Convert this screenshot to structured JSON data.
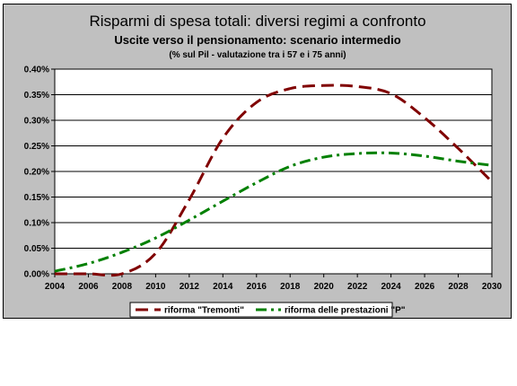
{
  "chart_data": {
    "type": "line",
    "title": "Risparmi di spesa totali: diversi regimi a confronto",
    "subtitle": "Uscite verso il pensionamento: scenario intermedio",
    "note": "(% sul Pil - valutazione tra i 57 e i 75 anni)",
    "xlabel": "",
    "ylabel": "",
    "x": [
      2004,
      2006,
      2008,
      2010,
      2012,
      2014,
      2016,
      2018,
      2020,
      2022,
      2024,
      2026,
      2028,
      2030
    ],
    "x_ticks": [
      "2004",
      "2006",
      "2008",
      "2010",
      "2012",
      "2014",
      "2016",
      "2018",
      "2020",
      "2022",
      "2024",
      "2026",
      "2028",
      "2030"
    ],
    "y_ticks": [
      "0.00%",
      "0.05%",
      "0.10%",
      "0.15%",
      "0.20%",
      "0.25%",
      "0.30%",
      "0.35%",
      "0.40%"
    ],
    "xlim": [
      2004,
      2030
    ],
    "ylim": [
      0,
      0.4
    ],
    "grid": "horizontal",
    "legend_position": "bottom",
    "series": [
      {
        "name": "riforma \"Tremonti\"",
        "color": "#800000",
        "dash": "long-dash",
        "values": [
          0.0,
          0.0,
          0.0,
          0.04,
          0.145,
          0.265,
          0.335,
          0.362,
          0.368,
          0.366,
          0.352,
          0.305,
          0.245,
          0.18
        ]
      },
      {
        "name": "riforma delle prestazioni \"P\"",
        "color": "#008000",
        "dash": "dash-dot",
        "values": [
          0.005,
          0.02,
          0.042,
          0.07,
          0.105,
          0.142,
          0.178,
          0.21,
          0.228,
          0.235,
          0.236,
          0.23,
          0.22,
          0.212
        ]
      }
    ]
  }
}
